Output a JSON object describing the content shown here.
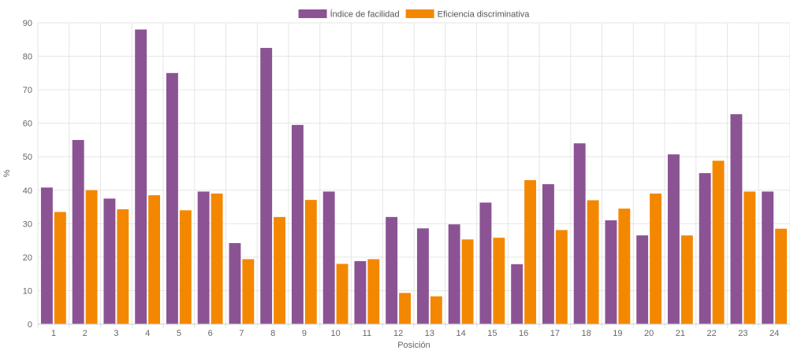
{
  "chart_data": {
    "type": "bar",
    "title": "",
    "xlabel": "Posición",
    "ylabel": "%",
    "ylim": [
      0,
      90
    ],
    "y_ticks": [
      0,
      10,
      20,
      30,
      40,
      50,
      60,
      70,
      80,
      90
    ],
    "grid": true,
    "legend_position": "top-center",
    "categories": [
      "1",
      "2",
      "3",
      "4",
      "5",
      "6",
      "7",
      "8",
      "9",
      "10",
      "11",
      "12",
      "13",
      "14",
      "15",
      "16",
      "17",
      "18",
      "19",
      "20",
      "21",
      "22",
      "23",
      "24"
    ],
    "series": [
      {
        "name": "Índice de facilidad",
        "color": "#8b5394",
        "values": [
          40.8,
          55,
          37.5,
          88,
          75,
          39.6,
          24.2,
          82.5,
          59.5,
          39.6,
          18.8,
          32,
          28.6,
          29.8,
          36.3,
          17.9,
          41.8,
          54,
          31,
          26.5,
          50.7,
          45.1,
          62.7,
          39.6
        ]
      },
      {
        "name": "Eficiencia discriminativa",
        "color": "#f38800",
        "values": [
          33.5,
          40,
          34.3,
          38.5,
          34,
          39,
          19.4,
          32,
          37.1,
          18,
          19.4,
          9.3,
          8.3,
          25.3,
          25.8,
          43,
          28.1,
          37,
          34.5,
          39,
          26.5,
          48.8,
          39.6,
          28.5
        ]
      }
    ]
  }
}
